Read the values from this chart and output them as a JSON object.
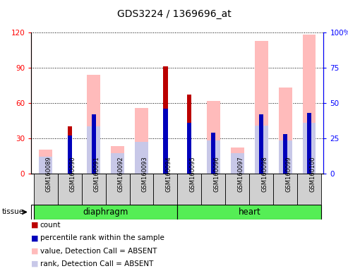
{
  "title": "GDS3224 / 1369696_at",
  "samples": [
    "GSM160089",
    "GSM160090",
    "GSM160091",
    "GSM160092",
    "GSM160093",
    "GSM160094",
    "GSM160095",
    "GSM160096",
    "GSM160097",
    "GSM160098",
    "GSM160099",
    "GSM160100"
  ],
  "red_bars": [
    0,
    40,
    0,
    0,
    0,
    91,
    67,
    0,
    0,
    0,
    0,
    0
  ],
  "blue_bars": [
    0,
    27,
    42,
    0,
    0,
    46,
    36,
    29,
    0,
    42,
    28,
    43
  ],
  "pink_bars": [
    20,
    0,
    84,
    23,
    56,
    0,
    0,
    62,
    22,
    113,
    73,
    118
  ],
  "lavender_bars": [
    14,
    0,
    40,
    17,
    27,
    0,
    0,
    28,
    17,
    41,
    28,
    43
  ],
  "ylim_left": [
    0,
    120
  ],
  "ylim_right": [
    0,
    100
  ],
  "yticks_left": [
    0,
    30,
    60,
    90,
    120
  ],
  "yticks_right": [
    0,
    25,
    50,
    75,
    100
  ],
  "wide_bar_width": 0.55,
  "narrow_bar_width": 0.18,
  "red_color": "#bb0000",
  "blue_color": "#0000bb",
  "pink_color": "#ffbbbb",
  "lavender_color": "#c8c8e8",
  "group1_name": "diaphragm",
  "group2_name": "heart",
  "group_color": "#55ee55",
  "tissue_label": "tissue",
  "gray_box_color": "#d0d0d0"
}
